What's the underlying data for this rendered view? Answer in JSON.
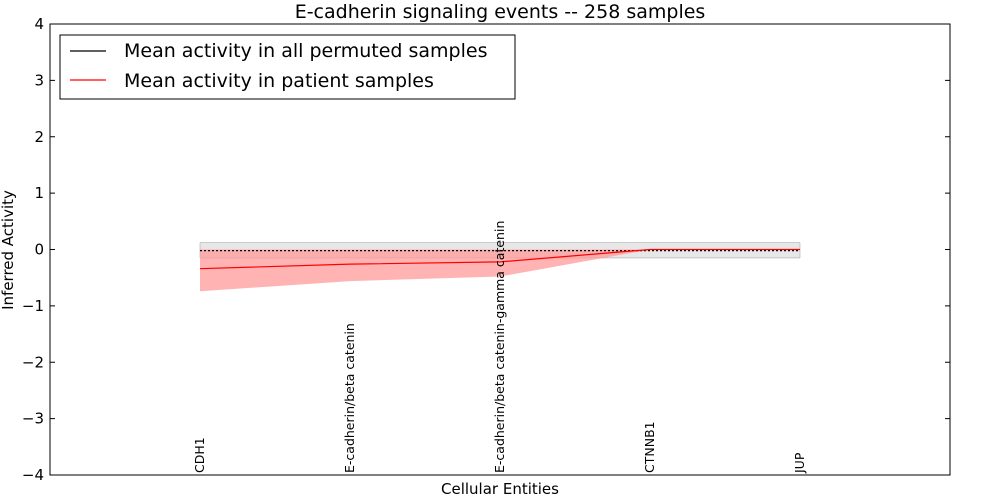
{
  "chart_data": {
    "type": "line",
    "title": "E-cadherin signaling events -- 258 samples",
    "xlabel": "Cellular Entities",
    "ylabel": "Inferred Activity",
    "ylim": [
      -4,
      4
    ],
    "yticks": [
      -4,
      -3,
      -2,
      -1,
      0,
      1,
      2,
      3,
      4
    ],
    "ytick_labels": [
      "−4",
      "−3",
      "−2",
      "−1",
      "0",
      "1",
      "2",
      "3",
      "4"
    ],
    "categories": [
      "CDH1",
      "E-cadherin/beta catenin",
      "E-cadherin/beta catenin-gamma catenin",
      "CTNNB1",
      "JUP"
    ],
    "series": [
      {
        "name": "Mean activity in all permuted samples",
        "color": "#000000",
        "band_color": "#bbbbbb",
        "values": [
          -0.02,
          -0.02,
          -0.02,
          -0.02,
          -0.02
        ],
        "lower": [
          -0.15,
          -0.15,
          -0.15,
          -0.15,
          -0.15
        ],
        "upper": [
          0.12,
          0.12,
          0.12,
          0.12,
          0.12
        ]
      },
      {
        "name": "Mean activity in patient samples",
        "color": "#ff0000",
        "band_color": "#ff9999",
        "values": [
          -0.34,
          -0.26,
          -0.22,
          0.0,
          0.0
        ],
        "lower": [
          -0.74,
          -0.56,
          -0.48,
          0.0,
          0.0
        ],
        "upper": [
          0.0,
          0.0,
          0.0,
          0.0,
          0.0
        ]
      }
    ],
    "legend_position": "top-left",
    "grid": false
  }
}
